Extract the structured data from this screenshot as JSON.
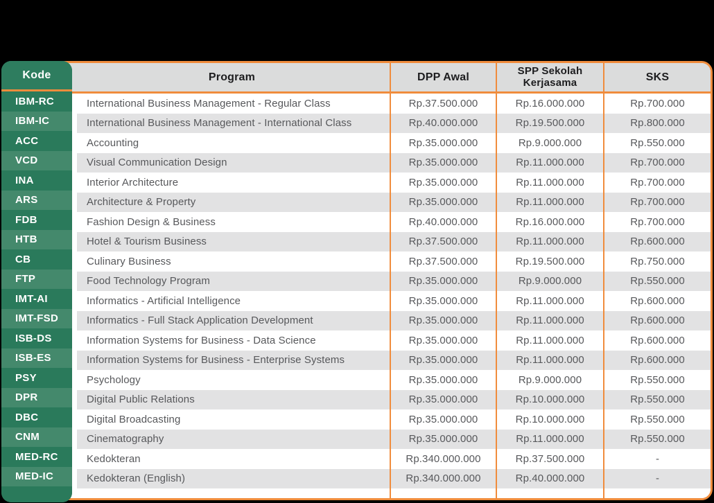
{
  "colors": {
    "background": "#000000",
    "border_orange": "#F08C3C",
    "green_header": "#2E7D5F",
    "green_row_dark": "#2A7A5B",
    "green_row_light": "#44896C",
    "header_gray": "#DBDCDC",
    "row_gray": "#E2E2E3",
    "row_white": "#FFFFFF",
    "text_header": "#1D1D1F",
    "text_body": "#57585B",
    "text_kode": "#FFFFFF"
  },
  "table": {
    "columns": {
      "kode": "Kode",
      "program": "Program",
      "dpp": "DPP Awal",
      "spp_line1": "SPP Sekolah",
      "spp_line2": "Kerjasama",
      "sks": "SKS"
    },
    "rows": [
      {
        "kode": "IBM-RC",
        "program": "International Business Management - Regular Class",
        "dpp": "Rp.37.500.000",
        "spp": "Rp.16.000.000",
        "sks": "Rp.700.000"
      },
      {
        "kode": "IBM-IC",
        "program": "International Business Management - International Class",
        "dpp": "Rp.40.000.000",
        "spp": "Rp.19.500.000",
        "sks": "Rp.800.000"
      },
      {
        "kode": "ACC",
        "program": "Accounting",
        "dpp": "Rp.35.000.000",
        "spp": "Rp.9.000.000",
        "sks": "Rp.550.000"
      },
      {
        "kode": "VCD",
        "program": "Visual Communication Design",
        "dpp": "Rp.35.000.000",
        "spp": "Rp.11.000.000",
        "sks": "Rp.700.000"
      },
      {
        "kode": "INA",
        "program": "Interior Architecture",
        "dpp": "Rp.35.000.000",
        "spp": "Rp.11.000.000",
        "sks": "Rp.700.000"
      },
      {
        "kode": "ARS",
        "program": "Architecture & Property",
        "dpp": "Rp.35.000.000",
        "spp": "Rp.11.000.000",
        "sks": "Rp.700.000"
      },
      {
        "kode": "FDB",
        "program": "Fashion Design & Business",
        "dpp": "Rp.40.000.000",
        "spp": "Rp.16.000.000",
        "sks": "Rp.700.000"
      },
      {
        "kode": "HTB",
        "program": "Hotel & Tourism Business",
        "dpp": "Rp.37.500.000",
        "spp": "Rp.11.000.000",
        "sks": "Rp.600.000"
      },
      {
        "kode": "CB",
        "program": "Culinary Business",
        "dpp": "Rp.37.500.000",
        "spp": "Rp.19.500.000",
        "sks": "Rp.750.000"
      },
      {
        "kode": "FTP",
        "program": "Food Technology Program",
        "dpp": "Rp.35.000.000",
        "spp": "Rp.9.000.000",
        "sks": "Rp.550.000"
      },
      {
        "kode": "IMT-AI",
        "program": "Informatics - Artificial Intelligence",
        "dpp": "Rp.35.000.000",
        "spp": "Rp.11.000.000",
        "sks": "Rp.600.000"
      },
      {
        "kode": "IMT-FSD",
        "program": "Informatics - Full Stack Application Development",
        "dpp": "Rp.35.000.000",
        "spp": "Rp.11.000.000",
        "sks": "Rp.600.000"
      },
      {
        "kode": "ISB-DS",
        "program": "Information Systems for Business - Data Science",
        "dpp": "Rp.35.000.000",
        "spp": "Rp.11.000.000",
        "sks": "Rp.600.000"
      },
      {
        "kode": "ISB-ES",
        "program": "Information Systems for Business - Enterprise Systems",
        "dpp": "Rp.35.000.000",
        "spp": "Rp.11.000.000",
        "sks": "Rp.600.000"
      },
      {
        "kode": "PSY",
        "program": "Psychology",
        "dpp": "Rp.35.000.000",
        "spp": "Rp.9.000.000",
        "sks": "Rp.550.000"
      },
      {
        "kode": "DPR",
        "program": "Digital Public Relations",
        "dpp": "Rp.35.000.000",
        "spp": "Rp.10.000.000",
        "sks": "Rp.550.000"
      },
      {
        "kode": "DBC",
        "program": "Digital Broadcasting",
        "dpp": "Rp.35.000.000",
        "spp": "Rp.10.000.000",
        "sks": "Rp.550.000"
      },
      {
        "kode": "CNM",
        "program": "Cinematography",
        "dpp": "Rp.35.000.000",
        "spp": "Rp.11.000.000",
        "sks": "Rp.550.000"
      },
      {
        "kode": "MED-RC",
        "program": "Kedokteran",
        "dpp": "Rp.340.000.000",
        "spp": "Rp.37.500.000",
        "sks": "-"
      },
      {
        "kode": "MED-IC",
        "program": "Kedokteran (English)",
        "dpp": "Rp.340.000.000",
        "spp": "Rp.40.000.000",
        "sks": "-"
      }
    ]
  }
}
